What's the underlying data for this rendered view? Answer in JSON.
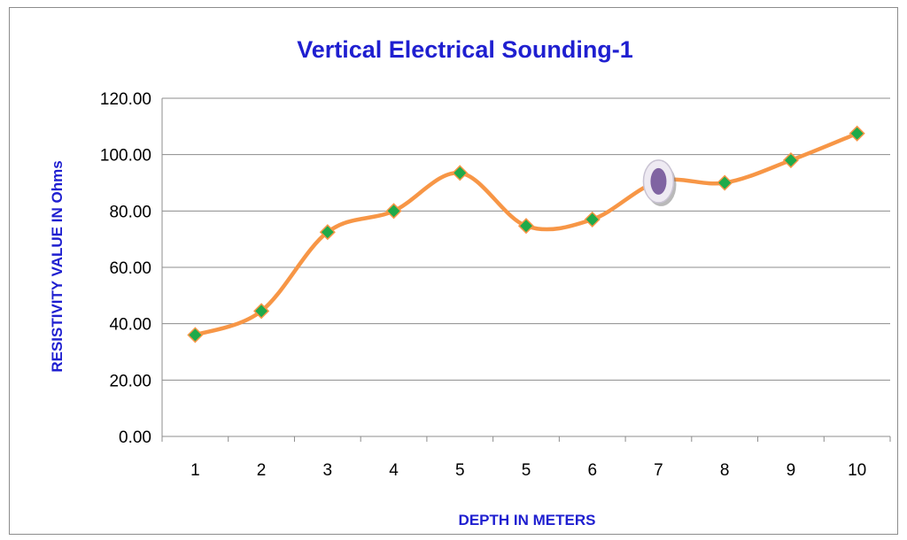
{
  "chart_data": {
    "type": "line",
    "title": "Vertical Electrical Sounding-1",
    "xlabel": "DEPTH IN METERS",
    "ylabel": "RESISTIVITY VALUE IN Ohms",
    "categories": [
      "1",
      "2",
      "3",
      "4",
      "5",
      "5",
      "6",
      "7",
      "8",
      "9",
      "10"
    ],
    "series": [
      {
        "values": [
          36.0,
          44.5,
          72.5,
          80.0,
          93.5,
          74.7,
          77.0,
          90.5,
          90.0,
          98.0,
          107.5
        ],
        "line_color": "#f79646",
        "marker_color": "#1faa4a",
        "marker_shape": "diamond",
        "smooth": true,
        "highlighted_point_index": 7,
        "highlight_color": "#8064a2"
      }
    ],
    "ylim": [
      0,
      120
    ],
    "yticks": [
      "0.00",
      "20.00",
      "40.00",
      "60.00",
      "80.00",
      "100.00",
      "120.00"
    ],
    "grid": true,
    "legend": "none",
    "title_color": "#1f1fd0"
  }
}
